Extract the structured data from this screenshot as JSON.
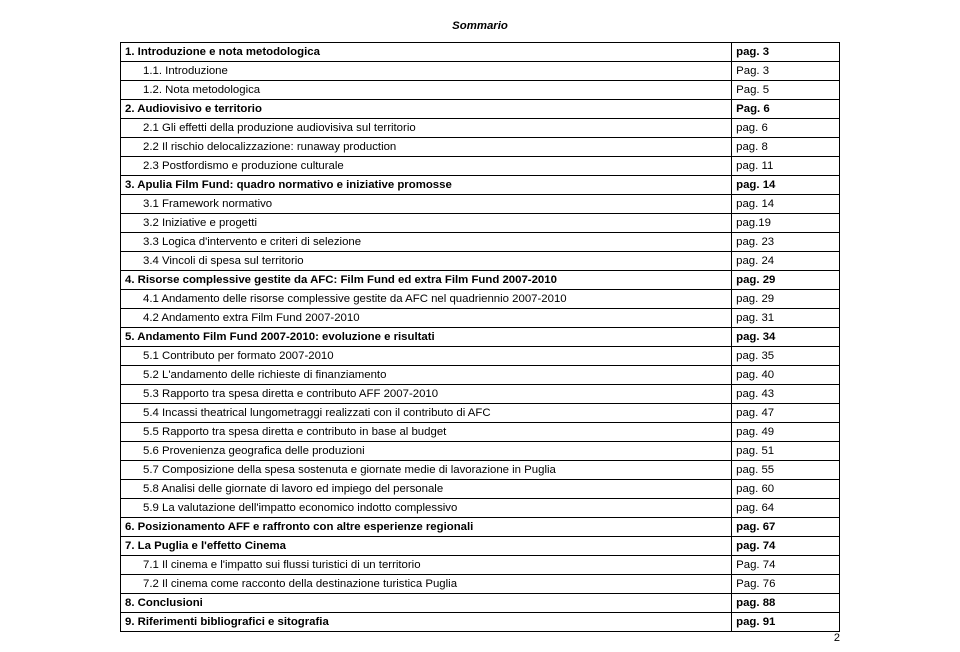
{
  "title": "Sommario",
  "page_number": "2",
  "rows": [
    {
      "label": "1. Introduzione e nota metodologica",
      "page": "pag. 3",
      "bold": true,
      "indent": 0
    },
    {
      "label": "1.1. Introduzione",
      "page": "Pag. 3",
      "bold": false,
      "indent": 1
    },
    {
      "label": "1.2. Nota metodologica",
      "page": "Pag. 5",
      "bold": false,
      "indent": 1
    },
    {
      "label": "2. Audiovisivo e territorio",
      "page": "Pag. 6",
      "bold": true,
      "indent": 0
    },
    {
      "label": "2.1 Gli effetti della produzione audiovisiva sul territorio",
      "page": "pag. 6",
      "bold": false,
      "indent": 1
    },
    {
      "label": "2.2 Il rischio delocalizzazione: runaway production",
      "page": "pag. 8",
      "bold": false,
      "indent": 1
    },
    {
      "label": "2.3 Postfordismo e produzione culturale",
      "page": "pag. 11",
      "bold": false,
      "indent": 1
    },
    {
      "label": "3. Apulia Film Fund: quadro normativo e iniziative promosse",
      "page": "pag. 14",
      "bold": true,
      "indent": 0
    },
    {
      "label": "3.1 Framework normativo",
      "page": "pag. 14",
      "bold": false,
      "indent": 1
    },
    {
      "label": "3.2 Iniziative e progetti",
      "page": "pag.19",
      "bold": false,
      "indent": 1
    },
    {
      "label": "3.3 Logica d'intervento e criteri di selezione",
      "page": "pag. 23",
      "bold": false,
      "indent": 1
    },
    {
      "label": "3.4 Vincoli di spesa sul territorio",
      "page": "pag. 24",
      "bold": false,
      "indent": 1
    },
    {
      "label": "4. Risorse complessive gestite da AFC: Film Fund ed extra Film Fund 2007-2010",
      "page": "pag. 29",
      "bold": true,
      "indent": 0
    },
    {
      "label": "4.1 Andamento delle risorse complessive gestite da AFC nel quadriennio 2007-2010",
      "page": "pag. 29",
      "bold": false,
      "indent": 1
    },
    {
      "label": "4.2 Andamento extra Film Fund 2007-2010",
      "page": "pag. 31",
      "bold": false,
      "indent": 1
    },
    {
      "label": "5. Andamento Film Fund 2007-2010: evoluzione e risultati",
      "page": "pag. 34",
      "bold": true,
      "indent": 0
    },
    {
      "label": "5.1 Contributo per formato 2007-2010",
      "page": "pag. 35",
      "bold": false,
      "indent": 1
    },
    {
      "label": "5.2 L'andamento delle richieste di finanziamento",
      "page": "pag. 40",
      "bold": false,
      "indent": 1
    },
    {
      "label": "5.3 Rapporto tra spesa diretta e contributo AFF 2007-2010",
      "page": "pag. 43",
      "bold": false,
      "indent": 1
    },
    {
      "label": "5.4 Incassi theatrical lungometraggi realizzati con il contributo di AFC",
      "page": "pag. 47",
      "bold": false,
      "indent": 1
    },
    {
      "label": "5.5 Rapporto tra spesa diretta e contributo in base al budget",
      "page": "pag. 49",
      "bold": false,
      "indent": 1
    },
    {
      "label": "5.6 Provenienza geografica delle produzioni",
      "page": "pag. 51",
      "bold": false,
      "indent": 1
    },
    {
      "label": "5.7 Composizione della spesa sostenuta e giornate medie di lavorazione in Puglia",
      "page": "pag. 55",
      "bold": false,
      "indent": 1
    },
    {
      "label": "5.8 Analisi delle giornate di lavoro ed impiego del personale",
      "page": "pag. 60",
      "bold": false,
      "indent": 1
    },
    {
      "label": "5.9 La valutazione dell'impatto economico indotto complessivo",
      "page": "pag. 64",
      "bold": false,
      "indent": 1
    },
    {
      "label": "6. Posizionamento AFF e raffronto con altre esperienze regionali",
      "page": "pag. 67",
      "bold": true,
      "indent": 0
    },
    {
      "label": "7. La Puglia e l'effetto Cinema",
      "page": "pag. 74",
      "bold": true,
      "indent": 0
    },
    {
      "label": "7.1 Il cinema e l'impatto sui flussi turistici di un territorio",
      "page": "Pag. 74",
      "bold": false,
      "indent": 1
    },
    {
      "label": "7.2 Il cinema come racconto della destinazione turistica Puglia",
      "page": "Pag. 76",
      "bold": false,
      "indent": 1
    },
    {
      "label": "8. Conclusioni",
      "page": "pag. 88",
      "bold": true,
      "indent": 0
    },
    {
      "label": "9. Riferimenti bibliografici e sitografia",
      "page": "pag. 91",
      "bold": true,
      "indent": 0
    }
  ]
}
